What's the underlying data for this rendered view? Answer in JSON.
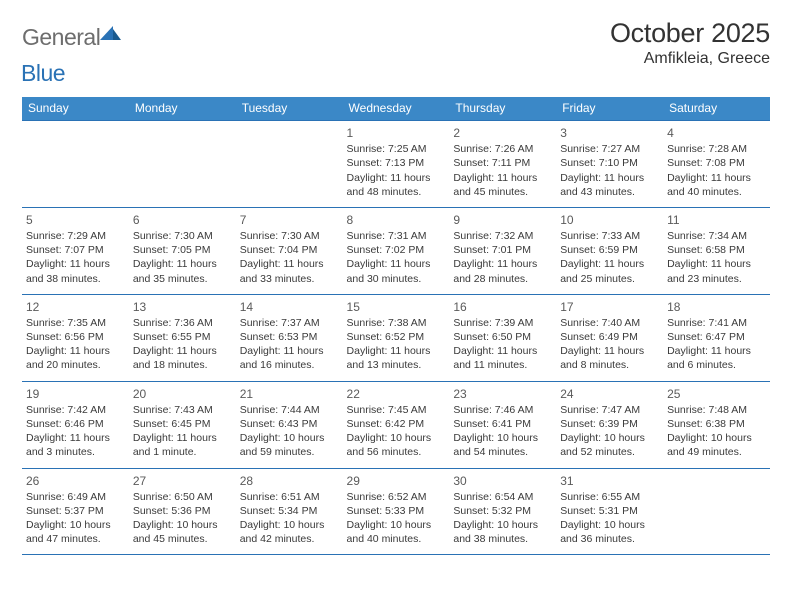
{
  "logo": {
    "general": "General",
    "blue": "Blue"
  },
  "title": "October 2025",
  "location": "Amfikleia, Greece",
  "header_color": "#3b88c7",
  "rule_color": "#2a72b5",
  "days": [
    "Sunday",
    "Monday",
    "Tuesday",
    "Wednesday",
    "Thursday",
    "Friday",
    "Saturday"
  ],
  "weeks": [
    [
      null,
      null,
      null,
      {
        "n": "1",
        "sr": "7:25 AM",
        "ss": "7:13 PM",
        "dl": "11 hours and 48 minutes."
      },
      {
        "n": "2",
        "sr": "7:26 AM",
        "ss": "7:11 PM",
        "dl": "11 hours and 45 minutes."
      },
      {
        "n": "3",
        "sr": "7:27 AM",
        "ss": "7:10 PM",
        "dl": "11 hours and 43 minutes."
      },
      {
        "n": "4",
        "sr": "7:28 AM",
        "ss": "7:08 PM",
        "dl": "11 hours and 40 minutes."
      }
    ],
    [
      {
        "n": "5",
        "sr": "7:29 AM",
        "ss": "7:07 PM",
        "dl": "11 hours and 38 minutes."
      },
      {
        "n": "6",
        "sr": "7:30 AM",
        "ss": "7:05 PM",
        "dl": "11 hours and 35 minutes."
      },
      {
        "n": "7",
        "sr": "7:30 AM",
        "ss": "7:04 PM",
        "dl": "11 hours and 33 minutes."
      },
      {
        "n": "8",
        "sr": "7:31 AM",
        "ss": "7:02 PM",
        "dl": "11 hours and 30 minutes."
      },
      {
        "n": "9",
        "sr": "7:32 AM",
        "ss": "7:01 PM",
        "dl": "11 hours and 28 minutes."
      },
      {
        "n": "10",
        "sr": "7:33 AM",
        "ss": "6:59 PM",
        "dl": "11 hours and 25 minutes."
      },
      {
        "n": "11",
        "sr": "7:34 AM",
        "ss": "6:58 PM",
        "dl": "11 hours and 23 minutes."
      }
    ],
    [
      {
        "n": "12",
        "sr": "7:35 AM",
        "ss": "6:56 PM",
        "dl": "11 hours and 20 minutes."
      },
      {
        "n": "13",
        "sr": "7:36 AM",
        "ss": "6:55 PM",
        "dl": "11 hours and 18 minutes."
      },
      {
        "n": "14",
        "sr": "7:37 AM",
        "ss": "6:53 PM",
        "dl": "11 hours and 16 minutes."
      },
      {
        "n": "15",
        "sr": "7:38 AM",
        "ss": "6:52 PM",
        "dl": "11 hours and 13 minutes."
      },
      {
        "n": "16",
        "sr": "7:39 AM",
        "ss": "6:50 PM",
        "dl": "11 hours and 11 minutes."
      },
      {
        "n": "17",
        "sr": "7:40 AM",
        "ss": "6:49 PM",
        "dl": "11 hours and 8 minutes."
      },
      {
        "n": "18",
        "sr": "7:41 AM",
        "ss": "6:47 PM",
        "dl": "11 hours and 6 minutes."
      }
    ],
    [
      {
        "n": "19",
        "sr": "7:42 AM",
        "ss": "6:46 PM",
        "dl": "11 hours and 3 minutes."
      },
      {
        "n": "20",
        "sr": "7:43 AM",
        "ss": "6:45 PM",
        "dl": "11 hours and 1 minute."
      },
      {
        "n": "21",
        "sr": "7:44 AM",
        "ss": "6:43 PM",
        "dl": "10 hours and 59 minutes."
      },
      {
        "n": "22",
        "sr": "7:45 AM",
        "ss": "6:42 PM",
        "dl": "10 hours and 56 minutes."
      },
      {
        "n": "23",
        "sr": "7:46 AM",
        "ss": "6:41 PM",
        "dl": "10 hours and 54 minutes."
      },
      {
        "n": "24",
        "sr": "7:47 AM",
        "ss": "6:39 PM",
        "dl": "10 hours and 52 minutes."
      },
      {
        "n": "25",
        "sr": "7:48 AM",
        "ss": "6:38 PM",
        "dl": "10 hours and 49 minutes."
      }
    ],
    [
      {
        "n": "26",
        "sr": "6:49 AM",
        "ss": "5:37 PM",
        "dl": "10 hours and 47 minutes."
      },
      {
        "n": "27",
        "sr": "6:50 AM",
        "ss": "5:36 PM",
        "dl": "10 hours and 45 minutes."
      },
      {
        "n": "28",
        "sr": "6:51 AM",
        "ss": "5:34 PM",
        "dl": "10 hours and 42 minutes."
      },
      {
        "n": "29",
        "sr": "6:52 AM",
        "ss": "5:33 PM",
        "dl": "10 hours and 40 minutes."
      },
      {
        "n": "30",
        "sr": "6:54 AM",
        "ss": "5:32 PM",
        "dl": "10 hours and 38 minutes."
      },
      {
        "n": "31",
        "sr": "6:55 AM",
        "ss": "5:31 PM",
        "dl": "10 hours and 36 minutes."
      },
      null
    ]
  ],
  "labels": {
    "sunrise": "Sunrise: ",
    "sunset": "Sunset: ",
    "daylight": "Daylight: "
  }
}
